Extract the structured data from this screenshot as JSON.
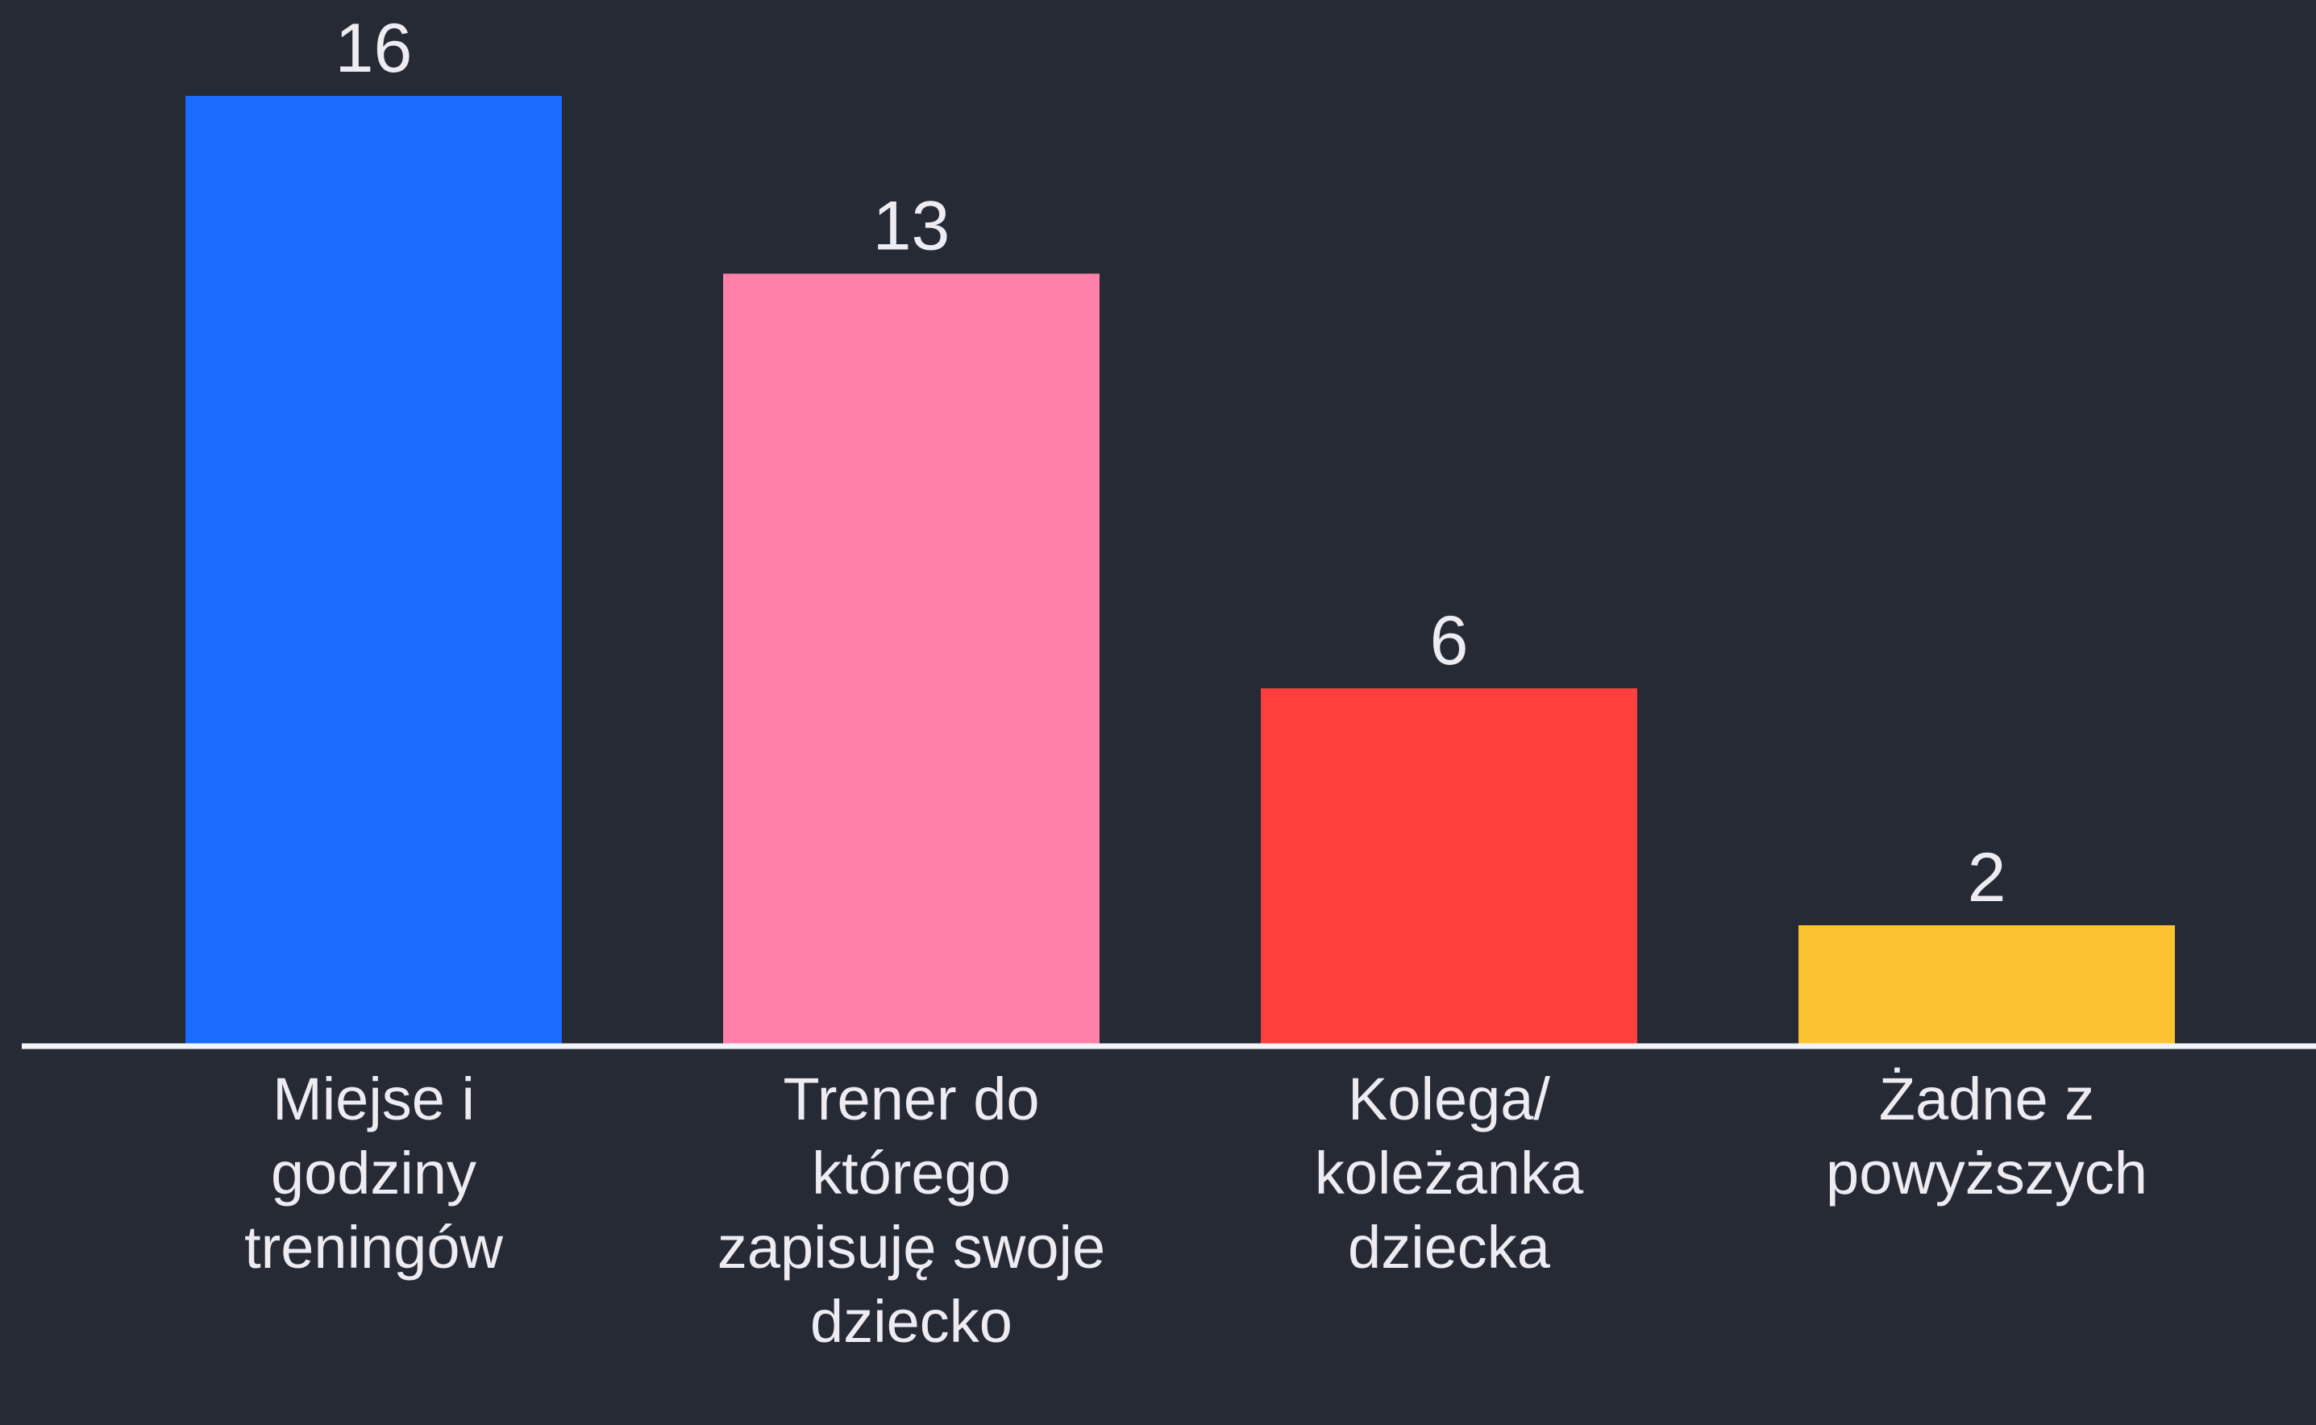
{
  "chart_data": {
    "type": "bar",
    "categories": [
      "Miejse i godziny treningów",
      "Trener do którego zapisuję swoje dziecko",
      "Kolega/ koleżanka dziecka",
      "Żadne z powyższych"
    ],
    "values": [
      16,
      13,
      6,
      2
    ],
    "colors": [
      "#1a6bff",
      "#ff80a8",
      "#ff403d",
      "#fdc431"
    ],
    "ylim": [
      0,
      16
    ]
  }
}
